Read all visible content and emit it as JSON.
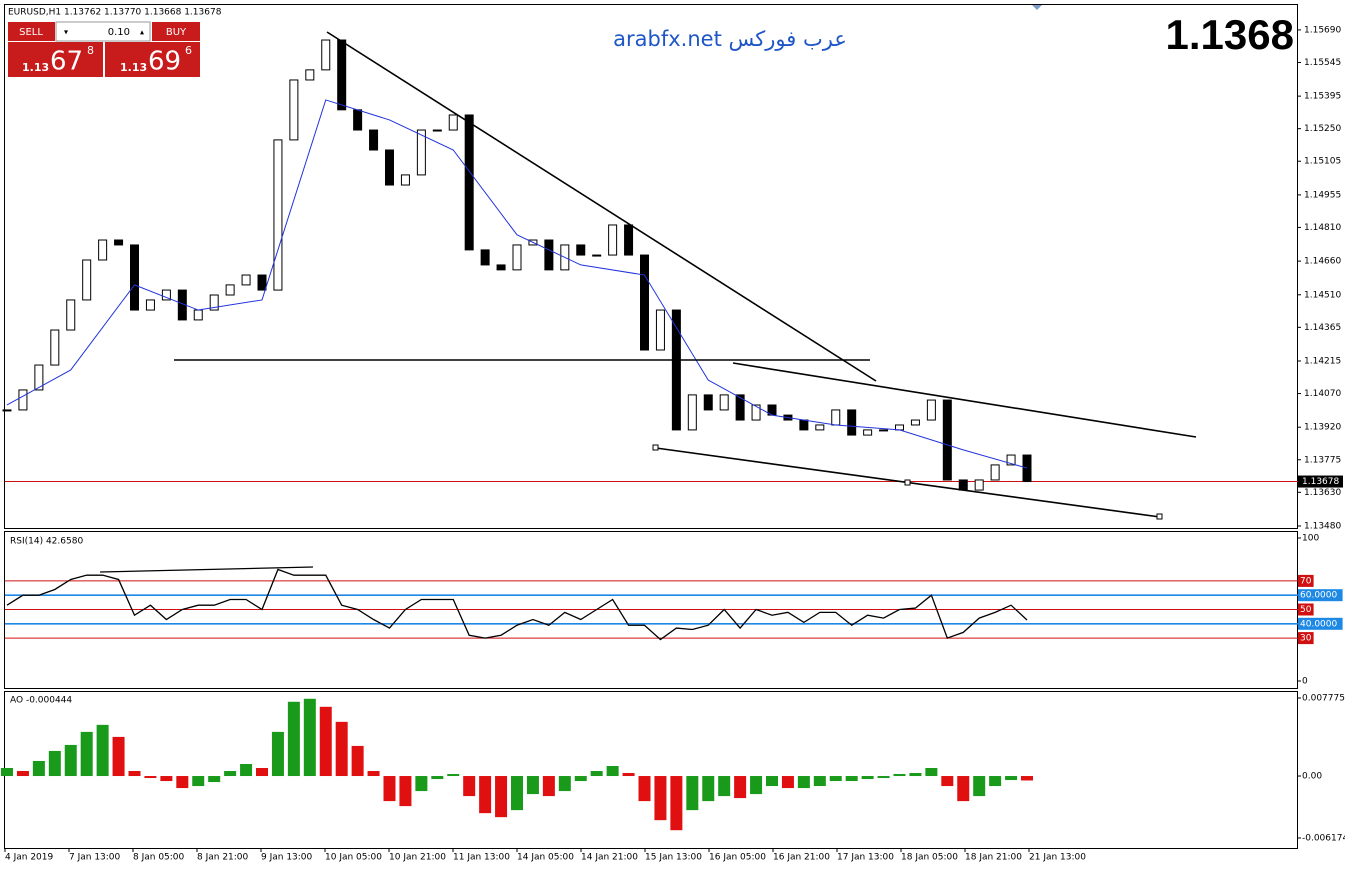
{
  "header": {
    "symbol_info": "EURUSD,H1  1.13762 1.13770 1.13668 1.13678",
    "big_price": "1.1368",
    "watermark": "arabfx.net عرب فوركس"
  },
  "trade_panel": {
    "sell": "SELL",
    "buy": "BUY",
    "lot": "0.10",
    "sell_price": {
      "prefix": "1.13",
      "big": "67",
      "small": "8"
    },
    "buy_price": {
      "prefix": "1.13",
      "big": "69",
      "small": "6"
    }
  },
  "time_axis": [
    "4 Jan 2019",
    "7 Jan 13:00",
    "8 Jan 05:00",
    "8 Jan 21:00",
    "9 Jan 13:00",
    "10 Jan 05:00",
    "10 Jan 21:00",
    "11 Jan 13:00",
    "14 Jan 05:00",
    "14 Jan 21:00",
    "15 Jan 13:00",
    "16 Jan 05:00",
    "16 Jan 21:00",
    "17 Jan 13:00",
    "18 Jan 05:00",
    "18 Jan 21:00",
    "21 Jan 13:00"
  ],
  "chart_data": [
    {
      "type": "candlestick",
      "bull_color": "#ffffff",
      "bear_color": "#000000",
      "values": [
        1.13997,
        1.14086,
        1.14197,
        1.14353,
        1.14487,
        1.14665,
        1.14754,
        1.14732,
        1.14442,
        1.14487,
        1.14531,
        1.14398,
        1.14442,
        1.14509,
        1.14554,
        1.14598,
        1.14531,
        1.152,
        1.15467,
        1.15512,
        1.15645,
        1.15334,
        1.15244,
        1.15155,
        1.14999,
        1.15044,
        1.15244,
        1.15244,
        1.15311,
        1.1471,
        1.14643,
        1.14621,
        1.14732,
        1.14754,
        1.14621,
        1.14732,
        1.14687,
        1.14687,
        1.14821,
        1.14687,
        1.14264,
        1.14442,
        1.13908,
        1.14064,
        1.13997,
        1.14064,
        1.13952,
        1.14019,
        1.13974,
        1.13952,
        1.13908,
        1.1393,
        1.13997,
        1.13885,
        1.13908,
        1.13908,
        1.1393,
        1.13952,
        1.14041,
        1.13685,
        1.1364,
        1.13685,
        1.13752,
        1.13796,
        1.13678
      ],
      "ma": {
        "color": "#2233dd",
        "values": [
          1.14019,
          1.14175,
          1.14554,
          1.14442,
          1.14487,
          1.15378,
          1.15289,
          1.15155,
          1.14777,
          1.14643,
          1.14598,
          1.1413,
          1.13974,
          1.1393,
          1.13908,
          1.13819,
          1.13738
        ]
      },
      "current_price": {
        "value": 1.13678,
        "label": "1.13678"
      },
      "ylim": [
        1.13471,
        1.15801
      ],
      "yticks": [
        {
          "value": 1.1569,
          "label": "1.15690"
        },
        1.15545,
        1.15395,
        {
          "value": 1.1525,
          "label": "1.15250"
        },
        1.15105,
        1.14955,
        {
          "value": 1.1481,
          "label": "1.14810"
        },
        {
          "value": 1.1466,
          "label": "1.14660"
        },
        {
          "value": 1.1451,
          "label": "1.14510"
        },
        1.14365,
        1.14215,
        {
          "value": 1.1407,
          "label": "1.14070"
        },
        {
          "value": 1.1392,
          "label": "1.13920"
        },
        1.13775,
        {
          "value": 1.1363,
          "label": "1.13630"
        },
        {
          "value": 1.1348,
          "label": "1.13480"
        }
      ]
    },
    {
      "type": "line",
      "title": "RSI(14) 42.6580",
      "color": "#000000",
      "values": [
        53,
        60,
        60,
        64,
        71,
        74,
        74,
        71,
        46,
        53,
        43,
        50,
        53,
        53,
        57,
        57,
        50,
        78,
        74,
        74,
        74,
        53,
        50,
        43,
        37,
        50,
        57,
        57,
        57,
        32,
        30,
        32,
        39,
        43,
        39,
        48,
        43,
        50,
        57,
        39,
        39,
        29,
        37,
        36,
        39,
        50,
        37,
        50,
        46,
        48,
        41,
        48,
        48,
        39,
        46,
        44,
        50,
        51,
        60,
        30,
        34,
        44,
        48,
        53,
        42.658
      ],
      "ylim": [
        -4.9,
        104.2
      ],
      "yticks": [
        100,
        0
      ],
      "levels": [
        {
          "value": 70,
          "color": "#d01010"
        },
        {
          "value": 50,
          "color": "#d01010"
        },
        {
          "value": 30,
          "color": "#d01010"
        },
        {
          "value": {
            "value": 60,
            "label": "60.0000"
          },
          "color": "#1e88e5"
        },
        {
          "value": {
            "value": 40,
            "label": "40.0000"
          },
          "color": "#1e88e5"
        }
      ]
    },
    {
      "type": "bar",
      "title": "AO -0.000444",
      "up_color": "#1a9a1a",
      "down_color": "#e01010",
      "values": [
        0.0008,
        0.0005,
        0.0015,
        0.0025,
        0.0031,
        0.0044,
        0.0051,
        0.0039,
        0.0005,
        -0.0002,
        -0.0005,
        -0.0012,
        -0.001,
        -0.0006,
        0.0005,
        0.0012,
        0.0008,
        0.0044,
        0.0074,
        0.0077,
        0.0069,
        0.0054,
        0.003,
        0.0005,
        -0.0025,
        -0.003,
        -0.0015,
        -0.0003,
        0.0002,
        -0.002,
        -0.0037,
        -0.0041,
        -0.0034,
        -0.0018,
        -0.002,
        -0.0015,
        -0.0005,
        0.0005,
        0.001,
        0.0003,
        -0.0025,
        -0.0044,
        -0.0054,
        -0.0034,
        -0.0025,
        -0.002,
        -0.0022,
        -0.0018,
        -0.001,
        -0.0012,
        -0.0012,
        -0.001,
        -0.0005,
        -0.0005,
        -0.0003,
        -0.0002,
        0.0002,
        0.0003,
        0.0008,
        -0.001,
        -0.0025,
        -0.002,
        -0.001,
        -0.0004,
        -0.000444
      ],
      "ylim": [
        -0.007174,
        0.008375
      ],
      "yticks": [
        0.007775,
        {
          "value": 0,
          "label": "0.00"
        },
        -0.006174
      ]
    }
  ]
}
